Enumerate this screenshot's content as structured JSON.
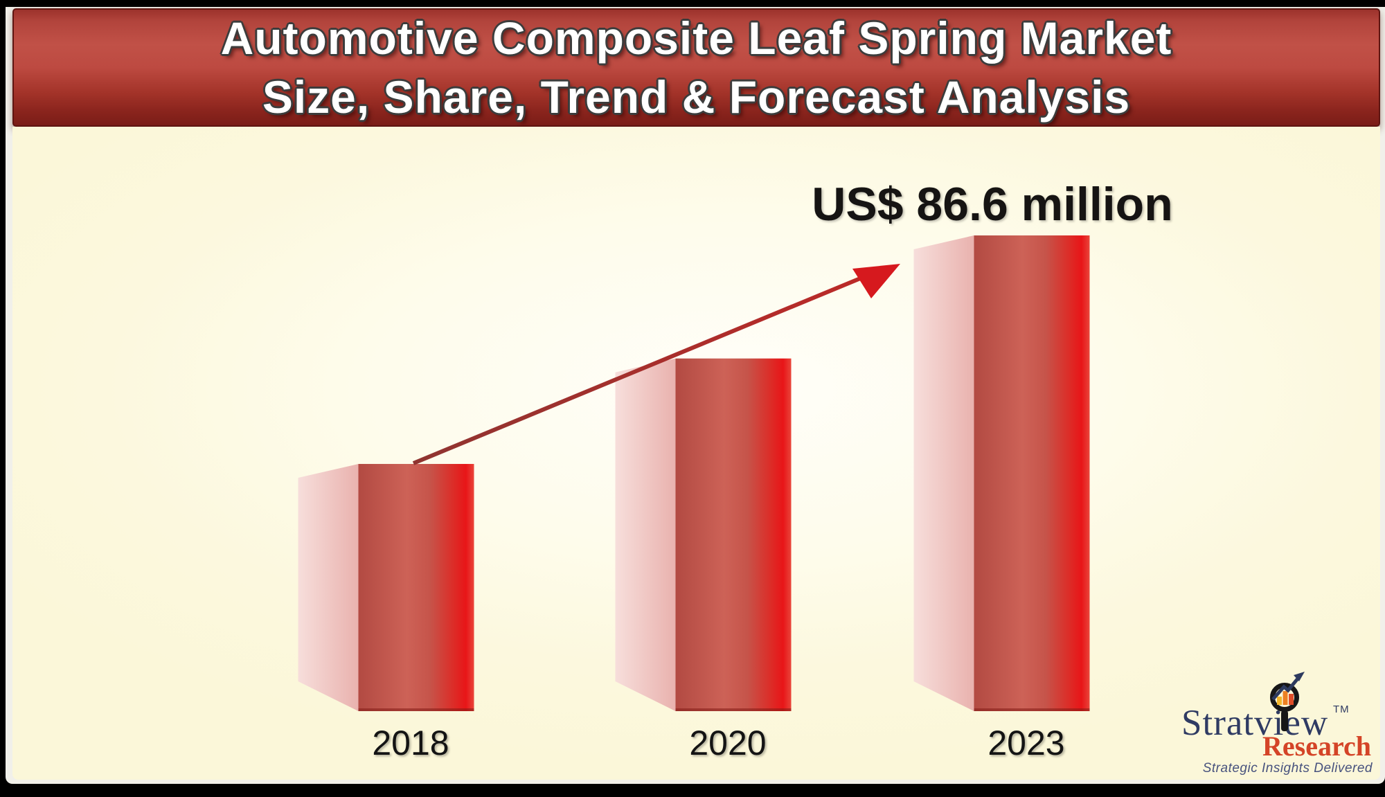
{
  "title": {
    "line1": "Automotive Composite Leaf Spring Market",
    "line2": "Size, Share, Trend & Forecast Analysis"
  },
  "chart_data": {
    "type": "bar",
    "title": "Automotive Composite Leaf Spring Market Size, Share, Trend & Forecast Analysis",
    "categories": [
      "2018",
      "2020",
      "2023"
    ],
    "values": [
      45.0,
      64.2,
      86.6
    ],
    "unit": "US$ million",
    "annotation": "US$ 86.6 million",
    "annotation_target": "2023",
    "xlabel": "",
    "ylabel": "",
    "value_axis": "hidden",
    "grid": false,
    "legend": "none",
    "trend_arrow": "up-right from 2018 bar top to 2023 annotation",
    "bar_style": "3d-red-gradient"
  },
  "branding": {
    "name": "Stratview",
    "tm": "TM",
    "division": "Research",
    "tagline": "Strategic Insights Delivered"
  },
  "colors": {
    "banner_red": "#b2443c",
    "banner_dark": "#7a1d17",
    "bar_front_bright": "#e81518",
    "bar_front_muted": "#b24a42",
    "bar_side_pink": "#f3cdca",
    "arrow_shaft": "#a23a33",
    "arrow_head": "#d6191e",
    "background_cream": "#fbf7d9",
    "logo_navy": "#2f3b63",
    "logo_red": "#d44427",
    "icon_yellow": "#f3b62c",
    "icon_orange": "#ec8022",
    "icon_redorange": "#df4d28"
  }
}
